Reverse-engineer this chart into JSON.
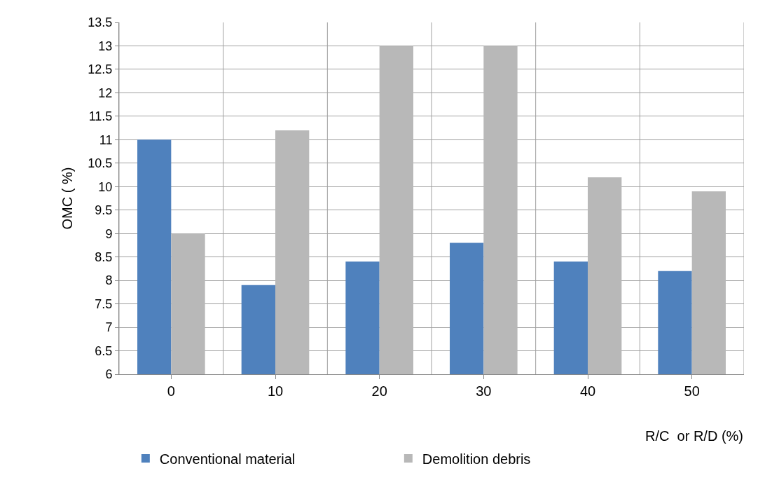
{
  "chart_data": {
    "type": "bar",
    "categories": [
      "0",
      "10",
      "20",
      "30",
      "40",
      "50"
    ],
    "series": [
      {
        "name": "Conventional material",
        "color": "#4f81bd",
        "values": [
          11,
          7.9,
          8.4,
          8.8,
          8.4,
          8.2
        ]
      },
      {
        "name": "Demolition debris",
        "color": "#b8b8b8",
        "values": [
          9,
          11.2,
          13,
          13,
          10.2,
          9.9
        ]
      }
    ],
    "xlabel": "R/C  or R/D (%)",
    "ylabel": "OMC ( %)",
    "ylim": [
      6,
      13.5
    ],
    "yticks": [
      6,
      6.5,
      7,
      7.5,
      8,
      8.5,
      9,
      9.5,
      10,
      10.5,
      11,
      11.5,
      12,
      12.5,
      13,
      13.5
    ],
    "grid": true,
    "legend": "bottom"
  }
}
